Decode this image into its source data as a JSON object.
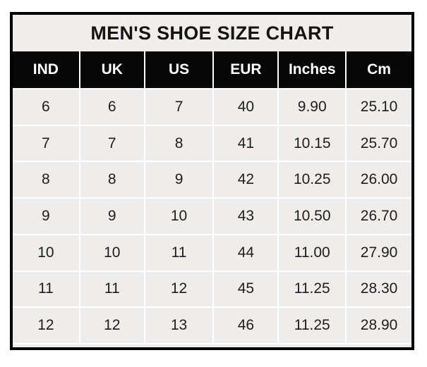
{
  "chart_data": {
    "type": "table",
    "title": "MEN'S SHOE SIZE CHART",
    "columns": [
      "IND",
      "UK",
      "US",
      "EUR",
      "Inches",
      "Cm"
    ],
    "rows": [
      [
        "6",
        "6",
        "7",
        "40",
        "9.90",
        "25.10"
      ],
      [
        "7",
        "7",
        "8",
        "41",
        "10.15",
        "25.70"
      ],
      [
        "8",
        "8",
        "9",
        "42",
        "10.25",
        "26.00"
      ],
      [
        "9",
        "9",
        "10",
        "43",
        "10.50",
        "26.70"
      ],
      [
        "10",
        "10",
        "11",
        "44",
        "11.00",
        "27.90"
      ],
      [
        "11",
        "11",
        "12",
        "45",
        "11.25",
        "28.30"
      ],
      [
        "12",
        "12",
        "13",
        "46",
        "11.25",
        "28.90"
      ]
    ],
    "layout": {
      "header_position": "top",
      "grid": "white gridline gaps between cells",
      "legend": "none"
    }
  },
  "colors": {
    "page_background": "#ffffff",
    "table_border": "#000000",
    "title_background": "#efeeed",
    "title_text": "#151413",
    "header_background": "#070707",
    "header_text": "#ffffff",
    "cell_background": "#eeedec",
    "cell_text": "#1e1d1c",
    "gridline": "#ffffff"
  }
}
